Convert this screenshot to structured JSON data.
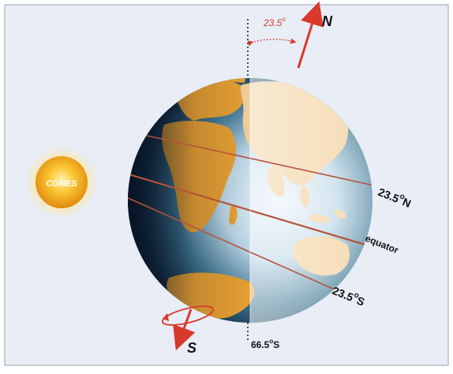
{
  "sun": {
    "label": "CGNES"
  },
  "tilt": {
    "angle_label": "23.5",
    "degree": "o"
  },
  "poles": {
    "north": "N",
    "south": "S"
  },
  "latitudes": {
    "tropic_north": {
      "value": "23.5",
      "degree": "o",
      "hemisphere": "N"
    },
    "equator": "equator",
    "tropic_south": {
      "value": "23.5",
      "degree": "o",
      "hemisphere": "S"
    },
    "bottom_mark": {
      "value": "66.5",
      "degree": "o",
      "hemisphere": "S"
    }
  },
  "colors": {
    "background": "#e8edf6",
    "ocean_dark": "#0e1a2e",
    "ocean_light": "#bcd6e6",
    "land_day": "#e8a032",
    "land_lit": "#f2cf9a",
    "latitude_line": "#b5533a",
    "tilt_arrow": "#d8392b",
    "sun": "#f2a91a",
    "label": "#111111"
  }
}
